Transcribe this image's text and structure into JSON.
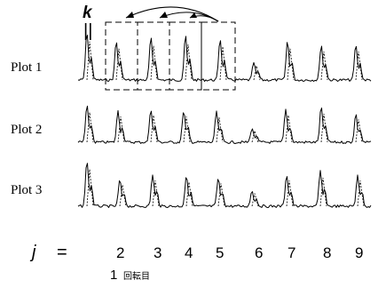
{
  "k_label": "k",
  "k_symbol": "||",
  "plots": [
    {
      "label": "Plot 1"
    },
    {
      "label": "Plot 2"
    },
    {
      "label": "Plot 3"
    }
  ],
  "j_label": "j",
  "equals": "=",
  "j_ticks": [
    "2",
    "3",
    "4",
    "5",
    "6",
    "7",
    "8",
    "9"
  ],
  "first_rotation_number": "1",
  "first_rotation_text": "回転目"
}
